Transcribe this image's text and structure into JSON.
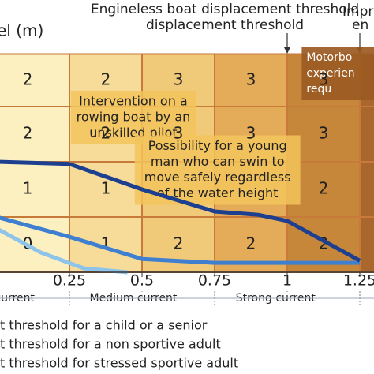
{
  "chart_data": {
    "type": "risk-grid",
    "title": "Engineless boat displacement threshold",
    "title2": "Impr",
    "title2_line2": "en",
    "y_label": "el (m)",
    "xlim": [
      0,
      1.3
    ],
    "ylim": [
      0,
      4.9
    ],
    "xticks": [
      0.25,
      0.5,
      0.75,
      1,
      1.25
    ],
    "column_edges": [
      0,
      0.25,
      0.5,
      0.75,
      1,
      1.25,
      1.5
    ],
    "row_edges": [
      0,
      1,
      2,
      3,
      3.95
    ],
    "column_colors": [
      "#fcefc0",
      "#f6dc98",
      "#f0c979",
      "#e4ac58",
      "#c6873a",
      "#a9672d"
    ],
    "cells": [
      [
        2,
        2,
        3,
        3,
        3,
        null
      ],
      [
        2,
        2,
        3,
        3,
        3,
        null
      ],
      [
        1,
        1,
        null,
        null,
        2,
        null
      ],
      [
        0,
        1,
        2,
        2,
        2,
        null
      ]
    ],
    "threshold_markers": [
      1,
      1.25
    ],
    "current_labels": [
      {
        "text": "w current",
        "x": 0.04
      },
      {
        "text": "Medium current",
        "x": 0.47
      },
      {
        "text": "Strong current",
        "x": 0.96
      },
      {
        "text": "",
        "x": 1.3
      }
    ],
    "annotations": [
      {
        "text": [
          "Intervention on a",
          "rowing boat by an",
          "unskilled pilot"
        ],
        "x": 0.47,
        "y": 2.8
      },
      {
        "text": [
          "Possibility for a young",
          "man who can swin to",
          "move safely regardless",
          "of the water height"
        ],
        "x": 0.76,
        "y": 1.85
      },
      {
        "text": [
          "Motorbo",
          "experien",
          "requ"
        ],
        "x": 1.3,
        "y": 3.6
      }
    ],
    "series": [
      {
        "name": "t threshold for a child or a senior",
        "color": "#8ec3ea",
        "x": [
          0,
          0.15,
          0.3,
          0.45
        ],
        "values": [
          0.79,
          0.36,
          0.07,
          0
        ]
      },
      {
        "name": "t threshold for a non sportive adult",
        "color": "#3f7fd0",
        "x": [
          0,
          0.25,
          0.5,
          0.75,
          1.25
        ],
        "values": [
          1.0,
          0.64,
          0.24,
          0.17,
          0.17
        ]
      },
      {
        "name": "t threshold for stressed sportive adult",
        "color": "#1d3f8f",
        "x": [
          0,
          0.25,
          0.5,
          0.75,
          0.9,
          1,
          1.1,
          1.25
        ],
        "values": [
          2.0,
          1.96,
          1.5,
          1.1,
          1.04,
          0.93,
          0.64,
          0.21
        ]
      }
    ]
  }
}
